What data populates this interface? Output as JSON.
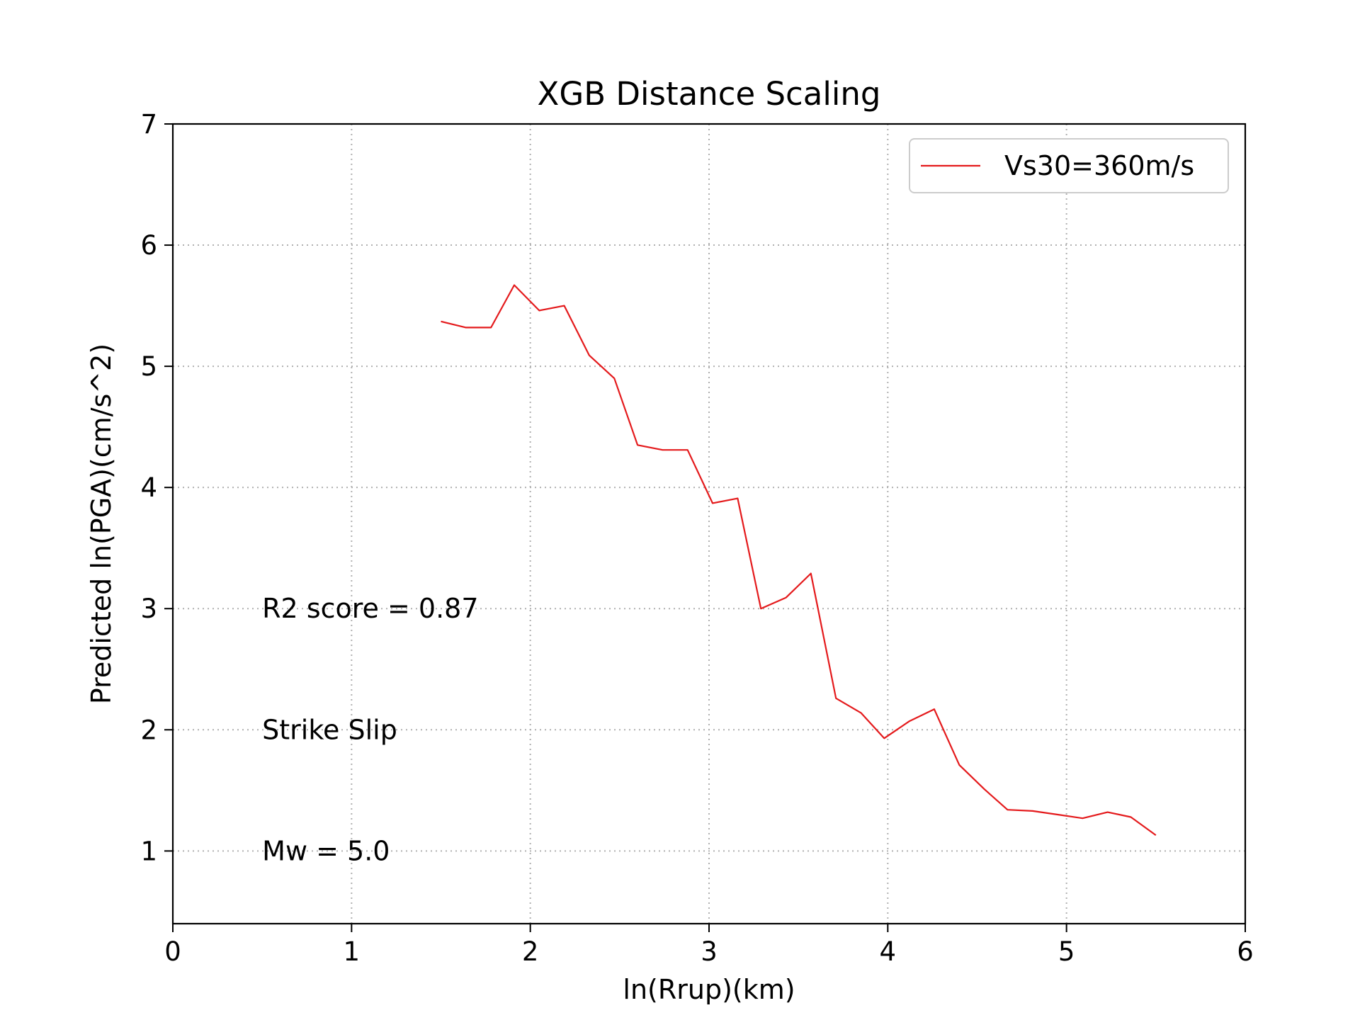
{
  "chart_data": {
    "type": "line",
    "title": "XGB Distance Scaling",
    "xlabel": "ln(Rrup)(km)",
    "ylabel": "Predicted ln(PGA)(cm/s^2)",
    "xlim": [
      0,
      6
    ],
    "ylim": [
      0.4,
      7
    ],
    "xticks": [
      0,
      1,
      2,
      3,
      4,
      5,
      6
    ],
    "yticks": [
      1,
      2,
      3,
      4,
      5,
      6,
      7
    ],
    "grid": true,
    "legend_position": "top-right",
    "series": [
      {
        "name": "Vs30=360m/s",
        "color": "#e41a1c",
        "x": [
          1.5,
          1.64,
          1.78,
          1.91,
          2.05,
          2.19,
          2.33,
          2.47,
          2.6,
          2.74,
          2.88,
          3.02,
          3.16,
          3.29,
          3.43,
          3.57,
          3.71,
          3.85,
          3.98,
          4.12,
          4.26,
          4.4,
          4.54,
          4.67,
          4.81,
          4.95,
          5.09,
          5.23,
          5.36,
          5.5
        ],
        "y": [
          5.37,
          5.32,
          5.32,
          5.67,
          5.46,
          5.5,
          5.09,
          4.9,
          4.35,
          4.31,
          4.31,
          3.87,
          3.91,
          3.0,
          3.09,
          3.29,
          2.26,
          2.14,
          1.93,
          2.07,
          2.17,
          1.71,
          1.51,
          1.34,
          1.33,
          1.3,
          1.27,
          1.32,
          1.28,
          1.13
        ]
      }
    ],
    "annotations": [
      {
        "text": "R2 score = 0.87",
        "x": 0.5,
        "y": 3.0
      },
      {
        "text": "Strike Slip",
        "x": 0.5,
        "y": 2.0
      },
      {
        "text": "Mw = 5.0",
        "x": 0.5,
        "y": 1.0
      }
    ]
  }
}
